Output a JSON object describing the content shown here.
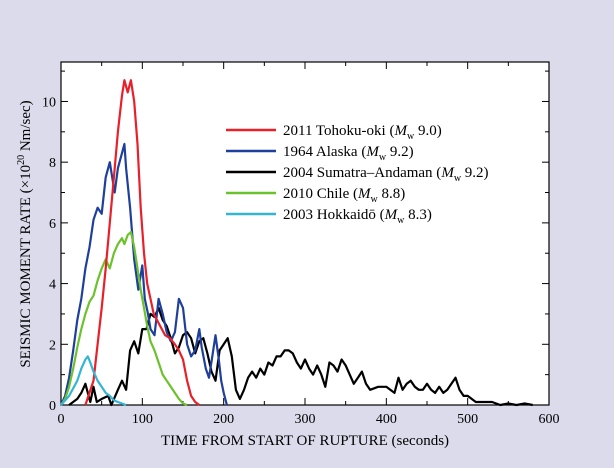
{
  "chart_data": {
    "type": "line",
    "xlabel": "TIME FROM START OF RUPTURE (seconds)",
    "ylabel_main": "SEISMIC MOMENT RATE (×10",
    "ylabel_exp": "20",
    "ylabel_unit": " Nm/sec)",
    "xlim": [
      0,
      600
    ],
    "ylim": [
      0,
      11.3
    ],
    "xticks": [
      0,
      100,
      200,
      300,
      400,
      500,
      600
    ],
    "yticks": [
      0,
      2,
      4,
      6,
      8,
      10
    ],
    "grid": false,
    "legend_position": "top-right",
    "series": [
      {
        "name": "2011 Tohoku-oki",
        "magnitude": "9.0",
        "color": "#e8202a",
        "points": [
          [
            30,
            0
          ],
          [
            40,
            0.8
          ],
          [
            45,
            2.0
          ],
          [
            50,
            3.2
          ],
          [
            55,
            4.5
          ],
          [
            60,
            6.0
          ],
          [
            65,
            7.5
          ],
          [
            70,
            9.0
          ],
          [
            75,
            10.2
          ],
          [
            78,
            10.7
          ],
          [
            82,
            10.3
          ],
          [
            86,
            10.7
          ],
          [
            90,
            10.0
          ],
          [
            94,
            8.6
          ],
          [
            98,
            6.5
          ],
          [
            102,
            5.0
          ],
          [
            106,
            4.0
          ],
          [
            110,
            3.5
          ],
          [
            114,
            3.0
          ],
          [
            118,
            2.8
          ],
          [
            122,
            2.6
          ],
          [
            128,
            2.3
          ],
          [
            134,
            2.2
          ],
          [
            140,
            2.0
          ],
          [
            145,
            1.8
          ],
          [
            150,
            1.5
          ],
          [
            155,
            0.8
          ],
          [
            160,
            0.3
          ],
          [
            165,
            0.1
          ],
          [
            170,
            0
          ]
        ]
      },
      {
        "name": "1964 Alaska",
        "magnitude": "9.2",
        "color": "#1f3f9c",
        "points": [
          [
            0,
            0
          ],
          [
            5,
            0.3
          ],
          [
            10,
            0.9
          ],
          [
            15,
            1.8
          ],
          [
            20,
            2.8
          ],
          [
            25,
            3.5
          ],
          [
            30,
            4.5
          ],
          [
            35,
            5.2
          ],
          [
            40,
            6.1
          ],
          [
            45,
            6.5
          ],
          [
            50,
            6.3
          ],
          [
            55,
            7.5
          ],
          [
            60,
            8.0
          ],
          [
            63,
            7.5
          ],
          [
            66,
            7.0
          ],
          [
            70,
            7.8
          ],
          [
            75,
            8.3
          ],
          [
            78,
            8.6
          ],
          [
            80,
            7.8
          ],
          [
            85,
            6.5
          ],
          [
            90,
            4.8
          ],
          [
            95,
            3.8
          ],
          [
            100,
            4.6
          ],
          [
            103,
            3.5
          ],
          [
            107,
            3.0
          ],
          [
            110,
            2.5
          ],
          [
            115,
            2.3
          ],
          [
            120,
            3.5
          ],
          [
            125,
            3.0
          ],
          [
            130,
            2.4
          ],
          [
            135,
            2.1
          ],
          [
            140,
            2.4
          ],
          [
            145,
            3.5
          ],
          [
            150,
            3.2
          ],
          [
            155,
            2.0
          ],
          [
            160,
            1.6
          ],
          [
            165,
            1.8
          ],
          [
            170,
            2.5
          ],
          [
            173,
            1.9
          ],
          [
            178,
            1.2
          ],
          [
            182,
            0.9
          ],
          [
            186,
            1.6
          ],
          [
            190,
            2.3
          ],
          [
            194,
            1.5
          ],
          [
            197,
            0.8
          ],
          [
            200,
            0.4
          ],
          [
            204,
            0
          ]
        ]
      },
      {
        "name": "2004 Sumatra–Andaman",
        "magnitude": "9.2",
        "color": "#000000",
        "points": [
          [
            10,
            0
          ],
          [
            20,
            0.2
          ],
          [
            25,
            0.4
          ],
          [
            30,
            0.7
          ],
          [
            33,
            0.4
          ],
          [
            36,
            0.1
          ],
          [
            40,
            0.6
          ],
          [
            44,
            0.1
          ],
          [
            50,
            0.2
          ],
          [
            58,
            0.3
          ],
          [
            62,
            0
          ],
          [
            70,
            0.5
          ],
          [
            75,
            0.8
          ],
          [
            80,
            0.5
          ],
          [
            85,
            1.8
          ],
          [
            90,
            2.1
          ],
          [
            95,
            1.7
          ],
          [
            100,
            2.5
          ],
          [
            105,
            2.5
          ],
          [
            110,
            3.0
          ],
          [
            115,
            2.9
          ],
          [
            120,
            3.2
          ],
          [
            125,
            2.8
          ],
          [
            130,
            2.6
          ],
          [
            135,
            2.2
          ],
          [
            140,
            1.7
          ],
          [
            145,
            1.9
          ],
          [
            150,
            2.3
          ],
          [
            155,
            2.4
          ],
          [
            160,
            2.2
          ],
          [
            165,
            1.7
          ],
          [
            170,
            2.1
          ],
          [
            175,
            2.2
          ],
          [
            180,
            1.7
          ],
          [
            185,
            1.1
          ],
          [
            190,
            0.8
          ],
          [
            195,
            1.8
          ],
          [
            200,
            2.0
          ],
          [
            205,
            2.2
          ],
          [
            210,
            1.6
          ],
          [
            215,
            0.5
          ],
          [
            220,
            0.2
          ],
          [
            225,
            0.5
          ],
          [
            230,
            0.9
          ],
          [
            235,
            1.1
          ],
          [
            240,
            0.9
          ],
          [
            245,
            1.2
          ],
          [
            250,
            1.0
          ],
          [
            255,
            1.4
          ],
          [
            260,
            1.3
          ],
          [
            265,
            1.6
          ],
          [
            270,
            1.6
          ],
          [
            275,
            1.8
          ],
          [
            280,
            1.8
          ],
          [
            285,
            1.7
          ],
          [
            290,
            1.4
          ],
          [
            295,
            1.2
          ],
          [
            300,
            1.5
          ],
          [
            305,
            1.2
          ],
          [
            310,
            1.0
          ],
          [
            315,
            1.3
          ],
          [
            320,
            1.0
          ],
          [
            325,
            0.6
          ],
          [
            330,
            1.4
          ],
          [
            335,
            1.3
          ],
          [
            340,
            1.1
          ],
          [
            345,
            1.5
          ],
          [
            350,
            1.3
          ],
          [
            355,
            1.0
          ],
          [
            360,
            0.7
          ],
          [
            365,
            0.9
          ],
          [
            370,
            1.1
          ],
          [
            375,
            0.7
          ],
          [
            380,
            0.5
          ],
          [
            390,
            0.6
          ],
          [
            400,
            0.6
          ],
          [
            410,
            0.4
          ],
          [
            415,
            0.9
          ],
          [
            420,
            0.5
          ],
          [
            425,
            0.7
          ],
          [
            430,
            0.8
          ],
          [
            435,
            0.6
          ],
          [
            440,
            0.5
          ],
          [
            445,
            0.5
          ],
          [
            450,
            0.7
          ],
          [
            455,
            0.5
          ],
          [
            460,
            0.4
          ],
          [
            465,
            0.6
          ],
          [
            470,
            0.4
          ],
          [
            475,
            0.5
          ],
          [
            480,
            0.7
          ],
          [
            485,
            0.9
          ],
          [
            490,
            0.5
          ],
          [
            495,
            0.3
          ],
          [
            500,
            0.3
          ],
          [
            510,
            0.1
          ],
          [
            520,
            0.1
          ],
          [
            530,
            0.1
          ],
          [
            540,
            0
          ],
          [
            550,
            0.05
          ],
          [
            560,
            0
          ],
          [
            570,
            0.05
          ],
          [
            580,
            0
          ]
        ]
      },
      {
        "name": "2010 Chile",
        "magnitude": "8.8",
        "color": "#6cc22c",
        "points": [
          [
            0,
            0
          ],
          [
            5,
            0.2
          ],
          [
            10,
            0.6
          ],
          [
            15,
            1.2
          ],
          [
            20,
            1.9
          ],
          [
            25,
            2.5
          ],
          [
            30,
            3.0
          ],
          [
            35,
            3.4
          ],
          [
            40,
            3.6
          ],
          [
            45,
            4.1
          ],
          [
            50,
            4.5
          ],
          [
            55,
            4.8
          ],
          [
            60,
            4.5
          ],
          [
            65,
            5.0
          ],
          [
            70,
            5.3
          ],
          [
            75,
            5.5
          ],
          [
            78,
            5.3
          ],
          [
            82,
            5.6
          ],
          [
            86,
            5.7
          ],
          [
            90,
            5.2
          ],
          [
            94,
            4.5
          ],
          [
            98,
            3.8
          ],
          [
            102,
            3.2
          ],
          [
            106,
            2.6
          ],
          [
            110,
            2.1
          ],
          [
            115,
            1.8
          ],
          [
            120,
            1.4
          ],
          [
            125,
            1.0
          ],
          [
            130,
            0.8
          ],
          [
            135,
            0.6
          ],
          [
            140,
            0.4
          ],
          [
            145,
            0.2
          ],
          [
            150,
            0.05
          ],
          [
            155,
            0
          ]
        ]
      },
      {
        "name": "2003 Hokkaidō",
        "magnitude": "8.3",
        "color": "#35b5d6",
        "points": [
          [
            0,
            0
          ],
          [
            10,
            0.3
          ],
          [
            20,
            0.8
          ],
          [
            25,
            1.2
          ],
          [
            30,
            1.5
          ],
          [
            33,
            1.6
          ],
          [
            36,
            1.4
          ],
          [
            40,
            1.1
          ],
          [
            45,
            0.8
          ],
          [
            50,
            0.6
          ],
          [
            55,
            0.4
          ],
          [
            60,
            0.3
          ],
          [
            65,
            0.15
          ],
          [
            70,
            0.1
          ],
          [
            75,
            0.05
          ],
          [
            80,
            0
          ]
        ]
      }
    ]
  }
}
